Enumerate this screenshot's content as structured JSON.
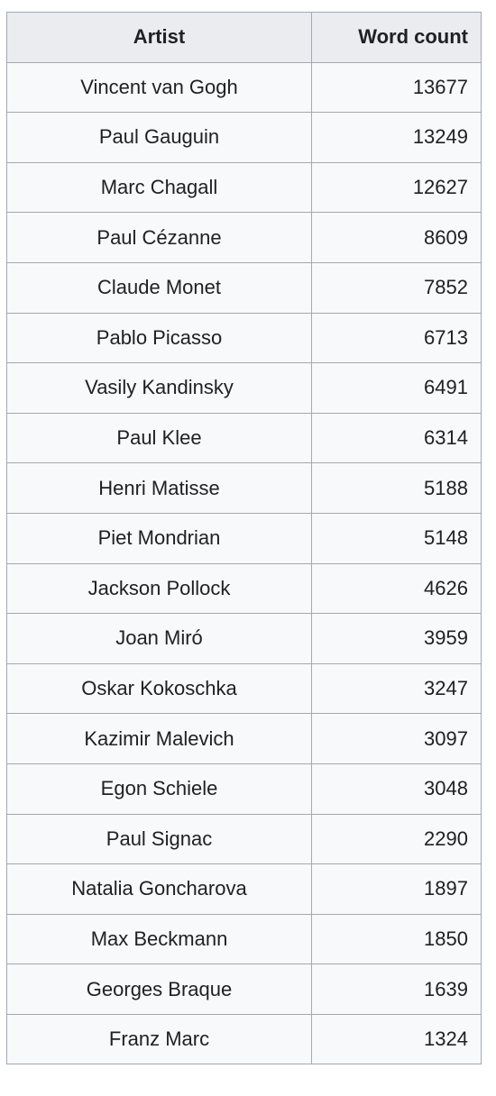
{
  "table": {
    "headers": {
      "artist": "Artist",
      "word_count": "Word count"
    },
    "rows": [
      {
        "artist": "Vincent van Gogh",
        "word_count": "13677"
      },
      {
        "artist": "Paul Gauguin",
        "word_count": "13249"
      },
      {
        "artist": "Marc Chagall",
        "word_count": "12627"
      },
      {
        "artist": "Paul Cézanne",
        "word_count": "8609"
      },
      {
        "artist": "Claude Monet",
        "word_count": "7852"
      },
      {
        "artist": "Pablo Picasso",
        "word_count": "6713"
      },
      {
        "artist": "Vasily Kandinsky",
        "word_count": "6491"
      },
      {
        "artist": "Paul Klee",
        "word_count": "6314"
      },
      {
        "artist": "Henri Matisse",
        "word_count": "5188"
      },
      {
        "artist": "Piet Mondrian",
        "word_count": "5148"
      },
      {
        "artist": "Jackson Pollock",
        "word_count": "4626"
      },
      {
        "artist": "Joan Miró",
        "word_count": "3959"
      },
      {
        "artist": "Oskar Kokoschka",
        "word_count": "3247"
      },
      {
        "artist": "Kazimir Malevich",
        "word_count": "3097"
      },
      {
        "artist": "Egon Schiele",
        "word_count": "3048"
      },
      {
        "artist": "Paul Signac",
        "word_count": "2290"
      },
      {
        "artist": "Natalia Goncharova",
        "word_count": "1897"
      },
      {
        "artist": "Max Beckmann",
        "word_count": "1850"
      },
      {
        "artist": "Georges Braque",
        "word_count": "1639"
      },
      {
        "artist": "Franz Marc",
        "word_count": "1324"
      }
    ]
  }
}
